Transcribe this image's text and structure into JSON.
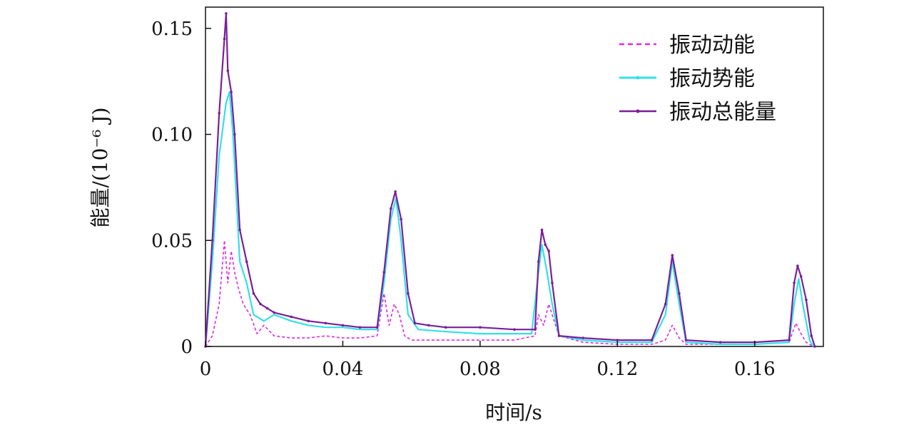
{
  "chart_data": {
    "type": "line",
    "xlabel": "时间/s",
    "ylabel": "能量/(10⁻⁶ J)",
    "xlim": [
      0,
      0.18
    ],
    "ylim": [
      0,
      0.16
    ],
    "x_ticks": [
      0,
      0.04,
      0.08,
      0.12,
      0.16
    ],
    "x_tick_labels": [
      "0",
      "0.04",
      "0.08",
      "0.12",
      "0.16"
    ],
    "y_ticks": [
      0,
      0.05,
      0.1,
      0.15
    ],
    "y_tick_labels": [
      "0",
      "0.05",
      "0.10",
      "0.15"
    ],
    "grid": false,
    "legend_position": "top-right",
    "series": [
      {
        "name": "振动动能",
        "color": "#e028e0",
        "style": "dashed",
        "points": [
          [
            0,
            0
          ],
          [
            0.002,
            0.005
          ],
          [
            0.004,
            0.02
          ],
          [
            0.0055,
            0.05
          ],
          [
            0.0065,
            0.03
          ],
          [
            0.0075,
            0.045
          ],
          [
            0.0085,
            0.035
          ],
          [
            0.0095,
            0.028
          ],
          [
            0.011,
            0.02
          ],
          [
            0.013,
            0.015
          ],
          [
            0.015,
            0.006
          ],
          [
            0.017,
            0.01
          ],
          [
            0.02,
            0.005
          ],
          [
            0.025,
            0.004
          ],
          [
            0.03,
            0.004
          ],
          [
            0.035,
            0.005
          ],
          [
            0.04,
            0.004
          ],
          [
            0.045,
            0.004
          ],
          [
            0.05,
            0.005
          ],
          [
            0.052,
            0.025
          ],
          [
            0.0535,
            0.01
          ],
          [
            0.055,
            0.02
          ],
          [
            0.0565,
            0.015
          ],
          [
            0.058,
            0.005
          ],
          [
            0.06,
            0.003
          ],
          [
            0.07,
            0.003
          ],
          [
            0.08,
            0.003
          ],
          [
            0.09,
            0.003
          ],
          [
            0.096,
            0.005
          ],
          [
            0.097,
            0.015
          ],
          [
            0.0985,
            0.01
          ],
          [
            0.1,
            0.02
          ],
          [
            0.101,
            0.015
          ],
          [
            0.103,
            0.005
          ],
          [
            0.11,
            0.002
          ],
          [
            0.12,
            0.001
          ],
          [
            0.13,
            0.001
          ],
          [
            0.134,
            0.003
          ],
          [
            0.136,
            0.01
          ],
          [
            0.138,
            0.004
          ],
          [
            0.14,
            0.001
          ],
          [
            0.15,
            0.001
          ],
          [
            0.16,
            0.001
          ],
          [
            0.17,
            0.002
          ],
          [
            0.172,
            0.011
          ],
          [
            0.1735,
            0.006
          ],
          [
            0.175,
            0.002
          ],
          [
            0.177,
            0
          ]
        ]
      },
      {
        "name": "振动势能",
        "color": "#33e0e8",
        "style": "solid",
        "points": [
          [
            0,
            0
          ],
          [
            0.002,
            0.04
          ],
          [
            0.004,
            0.09
          ],
          [
            0.006,
            0.115
          ],
          [
            0.007,
            0.12
          ],
          [
            0.008,
            0.1
          ],
          [
            0.009,
            0.07
          ],
          [
            0.01,
            0.04
          ],
          [
            0.012,
            0.03
          ],
          [
            0.014,
            0.015
          ],
          [
            0.017,
            0.012
          ],
          [
            0.02,
            0.015
          ],
          [
            0.025,
            0.012
          ],
          [
            0.03,
            0.01
          ],
          [
            0.035,
            0.009
          ],
          [
            0.04,
            0.009
          ],
          [
            0.045,
            0.008
          ],
          [
            0.05,
            0.008
          ],
          [
            0.052,
            0.03
          ],
          [
            0.054,
            0.06
          ],
          [
            0.0555,
            0.07
          ],
          [
            0.057,
            0.05
          ],
          [
            0.059,
            0.015
          ],
          [
            0.062,
            0.008
          ],
          [
            0.07,
            0.007
          ],
          [
            0.08,
            0.006
          ],
          [
            0.09,
            0.006
          ],
          [
            0.095,
            0.006
          ],
          [
            0.097,
            0.035
          ],
          [
            0.098,
            0.048
          ],
          [
            0.0995,
            0.035
          ],
          [
            0.101,
            0.02
          ],
          [
            0.103,
            0.005
          ],
          [
            0.11,
            0.003
          ],
          [
            0.12,
            0.002
          ],
          [
            0.13,
            0.002
          ],
          [
            0.134,
            0.015
          ],
          [
            0.136,
            0.04
          ],
          [
            0.138,
            0.02
          ],
          [
            0.14,
            0.002
          ],
          [
            0.15,
            0.001
          ],
          [
            0.16,
            0.001
          ],
          [
            0.17,
            0.002
          ],
          [
            0.1715,
            0.02
          ],
          [
            0.1728,
            0.032
          ],
          [
            0.174,
            0.02
          ],
          [
            0.176,
            0.003
          ],
          [
            0.177,
            0
          ]
        ]
      },
      {
        "name": "振动总能量",
        "color": "#7a1f9a",
        "style": "solid-marker",
        "points": [
          [
            0,
            0
          ],
          [
            0.002,
            0.05
          ],
          [
            0.004,
            0.11
          ],
          [
            0.0055,
            0.145
          ],
          [
            0.006,
            0.157
          ],
          [
            0.0065,
            0.13
          ],
          [
            0.0075,
            0.12
          ],
          [
            0.0085,
            0.1
          ],
          [
            0.01,
            0.055
          ],
          [
            0.012,
            0.04
          ],
          [
            0.014,
            0.025
          ],
          [
            0.016,
            0.02
          ],
          [
            0.018,
            0.018
          ],
          [
            0.02,
            0.016
          ],
          [
            0.025,
            0.014
          ],
          [
            0.03,
            0.012
          ],
          [
            0.035,
            0.011
          ],
          [
            0.04,
            0.01
          ],
          [
            0.045,
            0.009
          ],
          [
            0.05,
            0.009
          ],
          [
            0.052,
            0.035
          ],
          [
            0.054,
            0.065
          ],
          [
            0.0553,
            0.073
          ],
          [
            0.057,
            0.06
          ],
          [
            0.059,
            0.025
          ],
          [
            0.061,
            0.011
          ],
          [
            0.065,
            0.01
          ],
          [
            0.07,
            0.009
          ],
          [
            0.08,
            0.009
          ],
          [
            0.09,
            0.008
          ],
          [
            0.096,
            0.008
          ],
          [
            0.097,
            0.04
          ],
          [
            0.098,
            0.055
          ],
          [
            0.099,
            0.048
          ],
          [
            0.1,
            0.045
          ],
          [
            0.101,
            0.03
          ],
          [
            0.103,
            0.005
          ],
          [
            0.11,
            0.004
          ],
          [
            0.12,
            0.003
          ],
          [
            0.13,
            0.003
          ],
          [
            0.134,
            0.02
          ],
          [
            0.136,
            0.043
          ],
          [
            0.138,
            0.025
          ],
          [
            0.14,
            0.003
          ],
          [
            0.15,
            0.002
          ],
          [
            0.16,
            0.002
          ],
          [
            0.17,
            0.003
          ],
          [
            0.1715,
            0.03
          ],
          [
            0.1725,
            0.038
          ],
          [
            0.1735,
            0.033
          ],
          [
            0.175,
            0.022
          ],
          [
            0.1765,
            0.005
          ],
          [
            0.1775,
            0
          ]
        ]
      }
    ]
  }
}
